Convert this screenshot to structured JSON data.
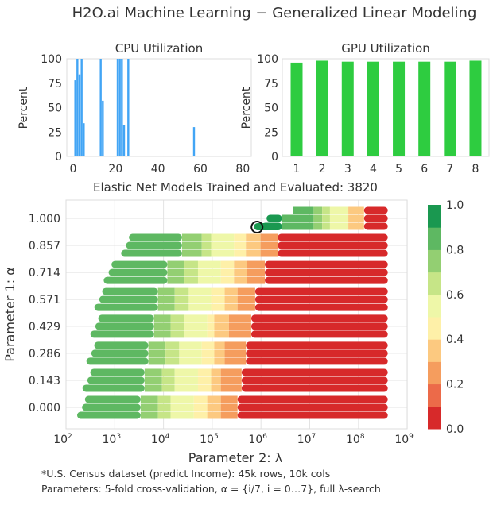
{
  "title": "H2O.ai Machine Learning − Generalized Linear Modeling",
  "chart_data": [
    {
      "type": "bar",
      "title": "CPU Utilization",
      "ylabel": "Percent",
      "xlabel": "",
      "xlim": [
        -3,
        84
      ],
      "ylim": [
        0,
        100
      ],
      "xticks": [
        "0",
        "20",
        "40",
        "60",
        "80"
      ],
      "yticks": [
        "0",
        "25",
        "50",
        "75",
        "100"
      ],
      "color": "#42a5f5",
      "x": [
        1,
        2,
        3,
        4,
        5,
        13,
        14,
        21,
        22,
        23,
        24,
        26,
        57
      ],
      "values": [
        78,
        100,
        84,
        100,
        34,
        100,
        57,
        100,
        100,
        100,
        32,
        100,
        30
      ]
    },
    {
      "type": "bar",
      "title": "GPU Utilization",
      "ylabel": "Percent",
      "xlabel": "",
      "ylim": [
        0,
        100
      ],
      "categories": [
        "1",
        "2",
        "3",
        "4",
        "5",
        "6",
        "7",
        "8"
      ],
      "yticks": [
        "0",
        "25",
        "50",
        "75",
        "100"
      ],
      "color": "#2ecc40",
      "values": [
        96,
        98,
        97,
        97,
        97,
        97,
        97,
        98
      ]
    },
    {
      "type": "heatmap",
      "title": "Elastic Net Models Trained and Evaluated: 3820",
      "xlabel": "Parameter 2:  λ",
      "ylabel": "Parameter 1:  α",
      "xscale": "log",
      "xlim": [
        100,
        1000000000
      ],
      "xticks": [
        "10",
        "10",
        "10",
        "10",
        "10",
        "10",
        "10",
        "10"
      ],
      "xtick_exponents": [
        "2",
        "3",
        "4",
        "5",
        "6",
        "7",
        "8",
        "9"
      ],
      "yticks": [
        "0.000",
        "0.143",
        "0.286",
        "0.429",
        "0.571",
        "0.714",
        "0.857",
        "1.000"
      ],
      "colormap": "RdYlGn",
      "colorbar_ticks": [
        "0.0",
        "0.2",
        "0.4",
        "0.6",
        "0.8",
        "1.0"
      ],
      "colorbar_colors": [
        "#d7292a",
        "#ec6a49",
        "#f59d5e",
        "#fcc980",
        "#fef0a8",
        "#eef7a8",
        "#c6e587",
        "#93cf72",
        "#5eb862",
        "#1a9850"
      ],
      "grid": true,
      "rows": [
        {
          "alpha": 0.0,
          "lambda_start": 213,
          "breaks": [
            3400,
            7700,
            14000,
            42000,
            79000,
            150000,
            330000,
            400000000
          ],
          "values": [
            0.85,
            0.75,
            0.65,
            0.55,
            0.45,
            0.35,
            0.25,
            0.05
          ]
        },
        {
          "alpha": 0.143,
          "lambda_start": 274,
          "breaks": [
            4100,
            9300,
            17000,
            51000,
            95000,
            150000,
            400000,
            400000000
          ],
          "values": [
            0.85,
            0.75,
            0.65,
            0.55,
            0.45,
            0.35,
            0.25,
            0.05
          ]
        },
        {
          "alpha": 0.286,
          "lambda_start": 330,
          "breaks": [
            4900,
            11000,
            21000,
            61000,
            110000,
            180000,
            490000,
            400000000
          ],
          "values": [
            0.85,
            0.75,
            0.65,
            0.55,
            0.45,
            0.35,
            0.25,
            0.05
          ]
        },
        {
          "alpha": 0.429,
          "lambda_start": 399,
          "breaks": [
            6400,
            14000,
            27000,
            79000,
            110000,
            220000,
            630000,
            400000000
          ],
          "values": [
            0.85,
            0.75,
            0.65,
            0.55,
            0.45,
            0.35,
            0.25,
            0.05
          ]
        },
        {
          "alpha": 0.571,
          "lambda_start": 482,
          "breaks": [
            7700,
            17000,
            33000,
            95000,
            180000,
            330000,
            760000,
            400000000
          ],
          "values": [
            0.85,
            0.75,
            0.65,
            0.55,
            0.45,
            0.35,
            0.25,
            0.05
          ]
        },
        {
          "alpha": 0.714,
          "lambda_start": 748,
          "breaks": [
            12000,
            27000,
            51000,
            150000,
            280000,
            520000,
            1200000,
            400000000
          ],
          "values": [
            0.85,
            0.75,
            0.65,
            0.55,
            0.45,
            0.35,
            0.25,
            0.05
          ]
        },
        {
          "alpha": 0.857,
          "lambda_start": 1700,
          "breaks": [
            24000,
            61000,
            95000,
            280000,
            490000,
            980000,
            2200000,
            400000000
          ],
          "values": [
            0.85,
            0.75,
            0.65,
            0.55,
            0.45,
            0.35,
            0.25,
            0.05
          ]
        },
        {
          "alpha": 1.0,
          "lambda_start": 1300000,
          "breaks": [
            2700000,
            12000000,
            18000000,
            26000000,
            62000000,
            130000000,
            400000000
          ],
          "values": [
            0.95,
            0.85,
            0.75,
            0.65,
            0.55,
            0.35,
            0.05
          ]
        }
      ],
      "best_model": {
        "alpha": 1.0,
        "lambda": 830000
      }
    }
  ],
  "footnotes": [
    "*U.S. Census dataset (predict Income): 45k rows, 10k cols",
    "Parameters: 5-fold cross-validation, α = {i/7, i = 0…7}, full λ-search"
  ]
}
